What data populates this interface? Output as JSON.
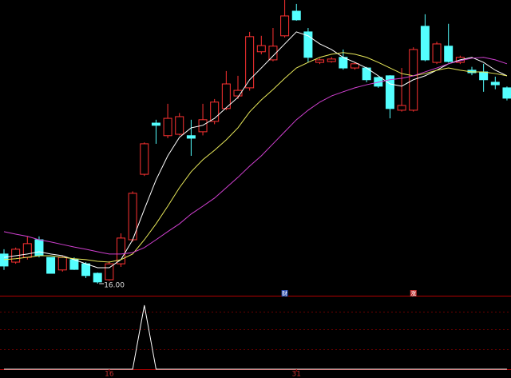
{
  "chart_data": [
    {
      "type": "candlestick",
      "ylim": [
        15.57,
        26.14
      ],
      "up_color": "#ff3232",
      "down_color": "#54ffff",
      "low_label": "16.00",
      "open": [
        17.06,
        16.77,
        16.94,
        17.57,
        16.94,
        16.49,
        16.86,
        16.71,
        16.37,
        16.14,
        16.71,
        17.57,
        19.91,
        21.74,
        21.29,
        21.34,
        21.29,
        21.43,
        21.8,
        22.26,
        22.71,
        23.0,
        24.29,
        24.0,
        24.86,
        25.74,
        25.0,
        23.91,
        23.94,
        24.09,
        23.71,
        23.71,
        23.37,
        23.43,
        22.2,
        22.2,
        25.2,
        23.91,
        24.49,
        23.91,
        23.63,
        23.57,
        23.2,
        23.0
      ],
      "close": [
        16.63,
        17.23,
        17.43,
        17.0,
        16.37,
        16.94,
        16.51,
        16.29,
        16.06,
        16.71,
        17.63,
        19.23,
        21.0,
        21.66,
        21.91,
        21.97,
        21.2,
        21.86,
        22.49,
        23.14,
        22.91,
        24.83,
        24.51,
        24.49,
        25.57,
        25.43,
        24.09,
        24.0,
        24.03,
        23.71,
        23.86,
        23.29,
        23.06,
        22.26,
        22.37,
        24.37,
        24.0,
        24.57,
        23.94,
        24.09,
        23.54,
        23.29,
        23.11,
        22.63
      ],
      "high": [
        17.23,
        17.29,
        17.69,
        17.69,
        16.94,
        17.0,
        16.94,
        16.77,
        16.4,
        16.8,
        17.8,
        19.3,
        21.05,
        21.86,
        22.43,
        22.1,
        21.86,
        22.43,
        22.6,
        23.6,
        23.43,
        25.0,
        24.86,
        25.14,
        26.14,
        26.0,
        25.14,
        24.05,
        24.1,
        24.37,
        23.9,
        23.75,
        23.4,
        23.45,
        23.71,
        24.45,
        25.63,
        24.65,
        25.29,
        24.15,
        23.75,
        23.86,
        23.4,
        23.05
      ],
      "low": [
        16.49,
        16.71,
        16.86,
        16.94,
        16.37,
        16.43,
        16.49,
        16.2,
        16.0,
        16.1,
        16.6,
        17.5,
        19.85,
        21.0,
        21.2,
        21.3,
        20.57,
        21.3,
        21.7,
        22.2,
        22.6,
        22.9,
        24.2,
        23.95,
        24.8,
        25.4,
        23.91,
        23.85,
        23.9,
        23.65,
        23.65,
        23.2,
        23.0,
        21.91,
        22.15,
        22.15,
        23.95,
        23.85,
        23.9,
        23.85,
        23.45,
        22.86,
        22.95,
        22.55
      ],
      "signals": [
        null,
        null,
        null,
        null,
        null,
        null,
        null,
        null,
        null,
        null,
        null,
        null,
        null,
        null,
        null,
        null,
        null,
        null,
        null,
        null,
        null,
        null,
        null,
        null,
        "财",
        null,
        null,
        null,
        null,
        null,
        null,
        null,
        null,
        null,
        null,
        "涨",
        null,
        null,
        null,
        null,
        null,
        null,
        null,
        null
      ],
      "series": [
        {
          "color": "#ffffff",
          "values": [
            16.94,
            17.0,
            17.06,
            17.14,
            17.06,
            17.0,
            16.86,
            16.71,
            16.57,
            16.57,
            16.86,
            17.57,
            18.66,
            19.71,
            20.57,
            21.23,
            21.57,
            21.66,
            21.91,
            22.29,
            22.66,
            23.29,
            23.71,
            24.14,
            24.57,
            25.0,
            24.86,
            24.57,
            24.37,
            24.09,
            23.91,
            23.71,
            23.43,
            23.14,
            23.06,
            23.29,
            23.43,
            23.63,
            23.86,
            24.0,
            24.09,
            23.91,
            23.63,
            23.43
          ]
        },
        {
          "color": "#e8e85a",
          "values": [
            16.86,
            16.89,
            16.94,
            17.0,
            17.0,
            16.94,
            16.89,
            16.86,
            16.8,
            16.77,
            16.86,
            17.06,
            17.57,
            18.14,
            18.77,
            19.43,
            20.0,
            20.43,
            20.77,
            21.14,
            21.57,
            22.14,
            22.57,
            22.94,
            23.34,
            23.71,
            23.91,
            24.09,
            24.2,
            24.26,
            24.2,
            24.09,
            23.91,
            23.71,
            23.51,
            23.43,
            23.51,
            23.63,
            23.71,
            23.63,
            23.57,
            23.57,
            23.51,
            23.43
          ]
        },
        {
          "color": "#d040d0",
          "values": [
            17.86,
            17.77,
            17.69,
            17.57,
            17.49,
            17.4,
            17.31,
            17.23,
            17.14,
            17.06,
            17.06,
            17.11,
            17.29,
            17.57,
            17.86,
            18.14,
            18.49,
            18.77,
            19.06,
            19.43,
            19.8,
            20.2,
            20.57,
            21.0,
            21.43,
            21.86,
            22.2,
            22.49,
            22.71,
            22.86,
            23.0,
            23.11,
            23.2,
            23.29,
            23.34,
            23.43,
            23.57,
            23.71,
            23.86,
            23.97,
            24.06,
            24.09,
            24.0,
            23.86
          ]
        }
      ]
    },
    {
      "type": "line",
      "ylim": [
        0,
        1.1
      ],
      "categories": [
        null,
        null,
        null,
        null,
        null,
        null,
        null,
        null,
        null,
        "16",
        null,
        null,
        null,
        null,
        null,
        null,
        null,
        null,
        null,
        null,
        null,
        null,
        null,
        null,
        null,
        "31",
        null,
        null,
        null,
        null,
        null,
        null,
        null,
        null,
        null,
        null,
        null,
        null,
        null,
        null,
        null,
        null,
        null,
        null
      ],
      "color": "#ffffff",
      "values": [
        0,
        0,
        0,
        0,
        0,
        0,
        0,
        0,
        0,
        0,
        0,
        0,
        1,
        0,
        0,
        0,
        0,
        0,
        0,
        0,
        0,
        0,
        0,
        0,
        0,
        0,
        0,
        0,
        0,
        0,
        0,
        0,
        0,
        0,
        0,
        0,
        0,
        0,
        0,
        0,
        0,
        0,
        0,
        0
      ]
    }
  ]
}
